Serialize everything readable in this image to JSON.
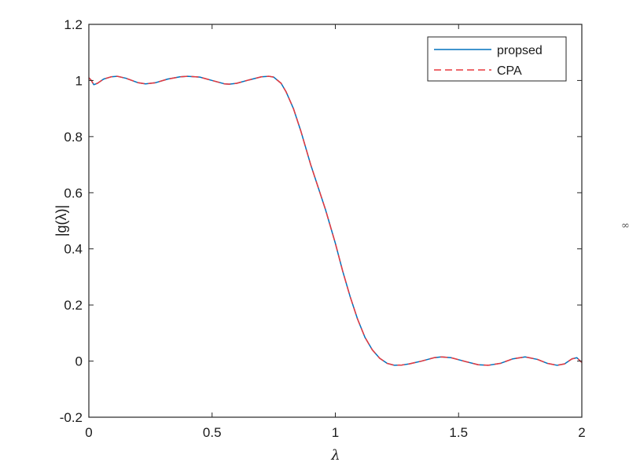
{
  "chart_data": {
    "type": "line",
    "title": "",
    "xlabel": "λ",
    "ylabel": "|g(λ)|",
    "xlim": [
      0,
      2
    ],
    "ylim": [
      -0.2,
      1.2
    ],
    "xticks": [
      0,
      0.5,
      1,
      1.5,
      2
    ],
    "yticks": [
      -0.2,
      0,
      0.2,
      0.4,
      0.6,
      0.8,
      1,
      1.2
    ],
    "xtick_labels": [
      "0",
      "0.5",
      "1",
      "1.5",
      "2"
    ],
    "ytick_labels": [
      "-0.2",
      "0",
      "0.2",
      "0.4",
      "0.6",
      "0.8",
      "1",
      "1.2"
    ],
    "grid": false,
    "legend_position": "top-right",
    "series": [
      {
        "name": "propsed",
        "color": "#0072BD",
        "line_style": "solid",
        "x": [
          0,
          0.01,
          0.02,
          0.035,
          0.06,
          0.09,
          0.115,
          0.15,
          0.2,
          0.23,
          0.27,
          0.32,
          0.37,
          0.4,
          0.45,
          0.5,
          0.55,
          0.57,
          0.6,
          0.65,
          0.7,
          0.73,
          0.75,
          0.78,
          0.8,
          0.83,
          0.86,
          0.9,
          0.93,
          0.96,
          0.98,
          1.0,
          1.03,
          1.06,
          1.09,
          1.12,
          1.15,
          1.18,
          1.21,
          1.24,
          1.27,
          1.3,
          1.35,
          1.4,
          1.43,
          1.47,
          1.53,
          1.58,
          1.62,
          1.67,
          1.72,
          1.77,
          1.82,
          1.86,
          1.9,
          1.93,
          1.96,
          1.98,
          2.0
        ],
        "y": [
          1.01,
          1.0,
          0.985,
          0.99,
          1.005,
          1.013,
          1.015,
          1.008,
          0.992,
          0.988,
          0.992,
          1.005,
          1.013,
          1.015,
          1.012,
          1.0,
          0.988,
          0.987,
          0.99,
          1.002,
          1.013,
          1.015,
          1.012,
          0.99,
          0.96,
          0.9,
          0.82,
          0.7,
          0.62,
          0.54,
          0.48,
          0.42,
          0.32,
          0.23,
          0.15,
          0.085,
          0.04,
          0.01,
          -0.008,
          -0.015,
          -0.014,
          -0.01,
          0.0,
          0.012,
          0.015,
          0.012,
          -0.002,
          -0.013,
          -0.015,
          -0.008,
          0.008,
          0.015,
          0.006,
          -0.008,
          -0.015,
          -0.01,
          0.008,
          0.012,
          -0.005
        ]
      },
      {
        "name": "CPA",
        "color": "#E8383D",
        "line_style": "dashed",
        "x": [
          0,
          0.01,
          0.02,
          0.035,
          0.06,
          0.09,
          0.115,
          0.15,
          0.2,
          0.23,
          0.27,
          0.32,
          0.37,
          0.4,
          0.45,
          0.5,
          0.55,
          0.57,
          0.6,
          0.65,
          0.7,
          0.73,
          0.75,
          0.78,
          0.8,
          0.83,
          0.86,
          0.9,
          0.93,
          0.96,
          0.98,
          1.0,
          1.03,
          1.06,
          1.09,
          1.12,
          1.15,
          1.18,
          1.21,
          1.24,
          1.27,
          1.3,
          1.35,
          1.4,
          1.43,
          1.47,
          1.53,
          1.58,
          1.62,
          1.67,
          1.72,
          1.77,
          1.82,
          1.86,
          1.9,
          1.93,
          1.96,
          1.98,
          2.0
        ],
        "y": [
          1.01,
          1.0,
          0.985,
          0.99,
          1.005,
          1.013,
          1.015,
          1.008,
          0.992,
          0.988,
          0.992,
          1.005,
          1.013,
          1.015,
          1.012,
          1.0,
          0.988,
          0.987,
          0.99,
          1.002,
          1.013,
          1.015,
          1.012,
          0.99,
          0.96,
          0.9,
          0.82,
          0.7,
          0.62,
          0.54,
          0.48,
          0.42,
          0.32,
          0.23,
          0.15,
          0.085,
          0.04,
          0.01,
          -0.008,
          -0.015,
          -0.014,
          -0.01,
          0.0,
          0.012,
          0.015,
          0.012,
          -0.002,
          -0.013,
          -0.015,
          -0.008,
          0.008,
          0.015,
          0.006,
          -0.008,
          -0.015,
          -0.01,
          0.008,
          0.012,
          -0.005
        ]
      }
    ]
  },
  "edge_glyph": "∞"
}
